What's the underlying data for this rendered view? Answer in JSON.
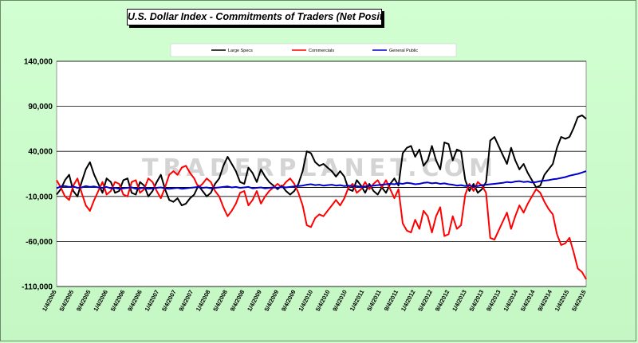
{
  "chart_data": {
    "type": "line",
    "title": "U.S. Dollar Index  - Commitments of Traders (Net Positions)",
    "watermark": "TRADERPLANET.COM",
    "xlabel": "",
    "ylabel": "",
    "ylim": [
      -110000,
      140000
    ],
    "y_ticks": [
      140000,
      90000,
      40000,
      -10000,
      -60000,
      -110000
    ],
    "y_tick_labels": [
      "140,000",
      "90,000",
      "40,000",
      "-10,000",
      "-60,000",
      "-110,000"
    ],
    "x_tick_labels": [
      "1/4/2005",
      "5/4/2005",
      "9/4/2005",
      "1/4/2006",
      "5/4/2006",
      "9/4/2006",
      "1/4/2007",
      "5/4/2007",
      "9/4/2007",
      "1/4/2008",
      "5/4/2008",
      "9/4/2008",
      "1/4/2009",
      "5/4/2009",
      "9/4/2009",
      "1/4/2010",
      "5/4/2010",
      "9/4/2010",
      "1/4/2011",
      "5/4/2011",
      "9/4/2011",
      "1/4/2012",
      "5/4/2012",
      "9/4/2012",
      "1/4/2013",
      "5/4/2013",
      "9/4/2013",
      "1/4/2014",
      "5/4/2014",
      "9/4/2014",
      "1/4/2015",
      "5/4/2015"
    ],
    "grid": true,
    "legend_position": "top",
    "zero_line": 0,
    "series": [
      {
        "name": "Large Specs",
        "color": "#000000",
        "values": [
          -8000,
          -2000,
          8000,
          14000,
          -4000,
          -10000,
          6000,
          20000,
          28000,
          14000,
          4000,
          -6000,
          10000,
          6000,
          -6000,
          -4000,
          8000,
          10000,
          -6000,
          -8000,
          6000,
          2000,
          -10000,
          -4000,
          6000,
          14000,
          -2000,
          -14000,
          -16000,
          -12000,
          -20000,
          -18000,
          -12000,
          -8000,
          2000,
          -4000,
          -10000,
          -6000,
          4000,
          10000,
          24000,
          34000,
          26000,
          18000,
          6000,
          4000,
          22000,
          16000,
          6000,
          20000,
          12000,
          6000,
          2000,
          -2000,
          2000,
          -4000,
          -8000,
          -4000,
          4000,
          18000,
          40000,
          38000,
          28000,
          24000,
          26000,
          22000,
          18000,
          12000,
          18000,
          12000,
          -2000,
          -4000,
          8000,
          2000,
          -6000,
          4000,
          -4000,
          -8000,
          0,
          -6000,
          4000,
          10000,
          2000,
          38000,
          44000,
          46000,
          34000,
          42000,
          24000,
          30000,
          46000,
          30000,
          20000,
          50000,
          48000,
          30000,
          42000,
          40000,
          8000,
          -4000,
          4000,
          -6000,
          -2000,
          6000,
          52000,
          56000,
          46000,
          36000,
          26000,
          44000,
          30000,
          20000,
          26000,
          16000,
          8000,
          0,
          2000,
          14000,
          20000,
          26000,
          44000,
          56000,
          54000,
          56000,
          66000,
          78000,
          80000,
          76000
        ]
      },
      {
        "name": "Commercials",
        "color": "#ff0000",
        "values": [
          8000,
          0,
          -10000,
          -14000,
          2000,
          10000,
          -6000,
          -20000,
          -26000,
          -14000,
          -4000,
          6000,
          -8000,
          -4000,
          6000,
          4000,
          -8000,
          -10000,
          6000,
          8000,
          -6000,
          -2000,
          10000,
          6000,
          -4000,
          -12000,
          0,
          14000,
          18000,
          14000,
          22000,
          24000,
          16000,
          10000,
          0,
          4000,
          10000,
          6000,
          -4000,
          -10000,
          -22000,
          -32000,
          -26000,
          -18000,
          -6000,
          -4000,
          -20000,
          -14000,
          -4000,
          -18000,
          -10000,
          -4000,
          0,
          4000,
          0,
          6000,
          10000,
          4000,
          -6000,
          -20000,
          -42000,
          -44000,
          -34000,
          -30000,
          -32000,
          -26000,
          -20000,
          -14000,
          -20000,
          -12000,
          0,
          4000,
          -6000,
          -2000,
          6000,
          -2000,
          4000,
          8000,
          0,
          8000,
          -2000,
          -12000,
          -2000,
          -40000,
          -48000,
          -50000,
          -36000,
          -46000,
          -26000,
          -32000,
          -50000,
          -32000,
          -22000,
          -54000,
          -52000,
          -32000,
          -46000,
          -42000,
          -8000,
          4000,
          -4000,
          6000,
          2000,
          -6000,
          -56000,
          -58000,
          -48000,
          -38000,
          -28000,
          -46000,
          -32000,
          -20000,
          -28000,
          -18000,
          -10000,
          -2000,
          -6000,
          -16000,
          -24000,
          -30000,
          -52000,
          -64000,
          -62000,
          -56000,
          -72000,
          -90000,
          -94000,
          -102000
        ]
      },
      {
        "name": "General Public",
        "color": "#0000cc",
        "values": [
          -1000,
          1000,
          1500,
          500,
          1000,
          -500,
          0,
          1500,
          500,
          1000,
          0,
          -500,
          500,
          -1000,
          -500,
          -1500,
          -1000,
          -500,
          0,
          -1500,
          -1000,
          -500,
          -1500,
          -1000,
          -500,
          0,
          -1000,
          -1500,
          -1000,
          -500,
          -1500,
          -1000,
          -500,
          0,
          500,
          -500,
          0,
          -1000,
          -500,
          0,
          500,
          1000,
          0,
          500,
          -500,
          0,
          500,
          -1000,
          -500,
          0,
          -1000,
          -500,
          0,
          -500,
          500,
          0,
          500,
          1000,
          1500,
          2000,
          3000,
          3500,
          2500,
          3000,
          2000,
          2500,
          3000,
          2000,
          2500,
          1500,
          2000,
          1000,
          1500,
          500,
          1000,
          1500,
          2000,
          2500,
          3000,
          3500,
          4000,
          3500,
          4500,
          4000,
          5000,
          4500,
          3500,
          4000,
          5000,
          5500,
          4500,
          5000,
          4000,
          4500,
          3500,
          3000,
          2000,
          2500,
          1500,
          2000,
          1000,
          1500,
          2500,
          3000,
          3500,
          4000,
          4500,
          5000,
          6000,
          5500,
          6500,
          7000,
          6000,
          6500,
          5500,
          6000,
          7000,
          7500,
          8000,
          9000,
          9500,
          10500,
          11500,
          13000,
          14000,
          15000,
          16500,
          18000
        ]
      }
    ]
  }
}
